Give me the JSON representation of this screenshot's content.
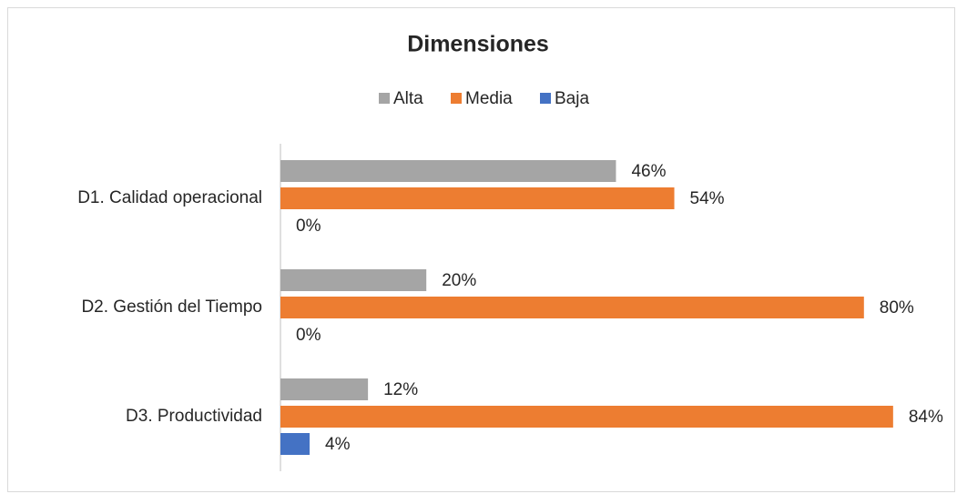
{
  "chart_data": {
    "type": "bar",
    "orientation": "horizontal",
    "title": "Dimensiones",
    "categories": [
      "D1. Calidad operacional",
      "D2. Gestión del Tiempo",
      "D3. Productividad"
    ],
    "series": [
      {
        "name": "Alta",
        "color": "#a5a5a5",
        "values": [
          46,
          20,
          12
        ],
        "value_labels": [
          "46%",
          "20%",
          "12%"
        ]
      },
      {
        "name": "Media",
        "color": "#ed7d31",
        "values": [
          54,
          80,
          84
        ],
        "value_labels": [
          "54%",
          "80%",
          "84%"
        ]
      },
      {
        "name": "Baja",
        "color": "#4472c4",
        "values": [
          0,
          0,
          4
        ],
        "value_labels": [
          "0%",
          "0%",
          "4%"
        ]
      }
    ],
    "legend": "top"
  }
}
